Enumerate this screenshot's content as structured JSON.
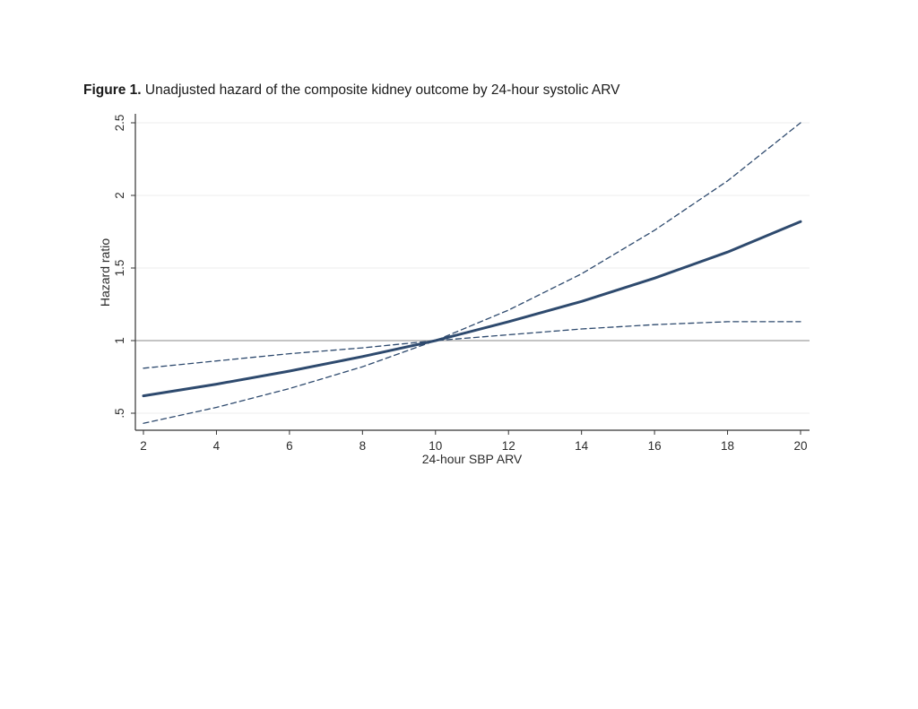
{
  "figure_title": {
    "label": "Figure 1.",
    "text": " Unadjusted hazard of the composite kidney outcome by 24-hour systolic ARV"
  },
  "chart_data": {
    "type": "line",
    "xlabel": "24-hour SBP ARV",
    "ylabel": "Hazard ratio",
    "xlim": [
      2,
      20
    ],
    "ylim": [
      0.4,
      2.55
    ],
    "x_ticks": [
      2,
      4,
      6,
      8,
      10,
      12,
      14,
      16,
      18,
      20
    ],
    "x_tick_labels": [
      "2",
      "4",
      "6",
      "8",
      "10",
      "12",
      "14",
      "16",
      "18",
      "20"
    ],
    "y_ticks": [
      0.5,
      1,
      1.5,
      2,
      2.5
    ],
    "y_tick_labels": [
      ".5",
      "1",
      "1.5",
      "2",
      "2.5"
    ],
    "grid": "horizontal",
    "reference_line": 1,
    "colors": {
      "series": "#2e4a6e",
      "reference": "#a0a0a0",
      "grid": "#eeeeee",
      "axis": "#333333"
    },
    "x": [
      2,
      4,
      6,
      8,
      10,
      12,
      14,
      16,
      18,
      20
    ],
    "series": [
      {
        "style": "solid",
        "values": [
          0.62,
          0.7,
          0.79,
          0.89,
          1.0,
          1.13,
          1.27,
          1.43,
          1.61,
          1.82
        ]
      },
      {
        "style": "dashed",
        "values": [
          0.81,
          0.86,
          0.91,
          0.95,
          1.0,
          1.04,
          1.08,
          1.11,
          1.13,
          1.13
        ]
      },
      {
        "style": "dashed",
        "values": [
          0.43,
          0.54,
          0.67,
          0.82,
          1.0,
          1.21,
          1.46,
          1.76,
          2.1,
          2.5
        ]
      }
    ]
  }
}
